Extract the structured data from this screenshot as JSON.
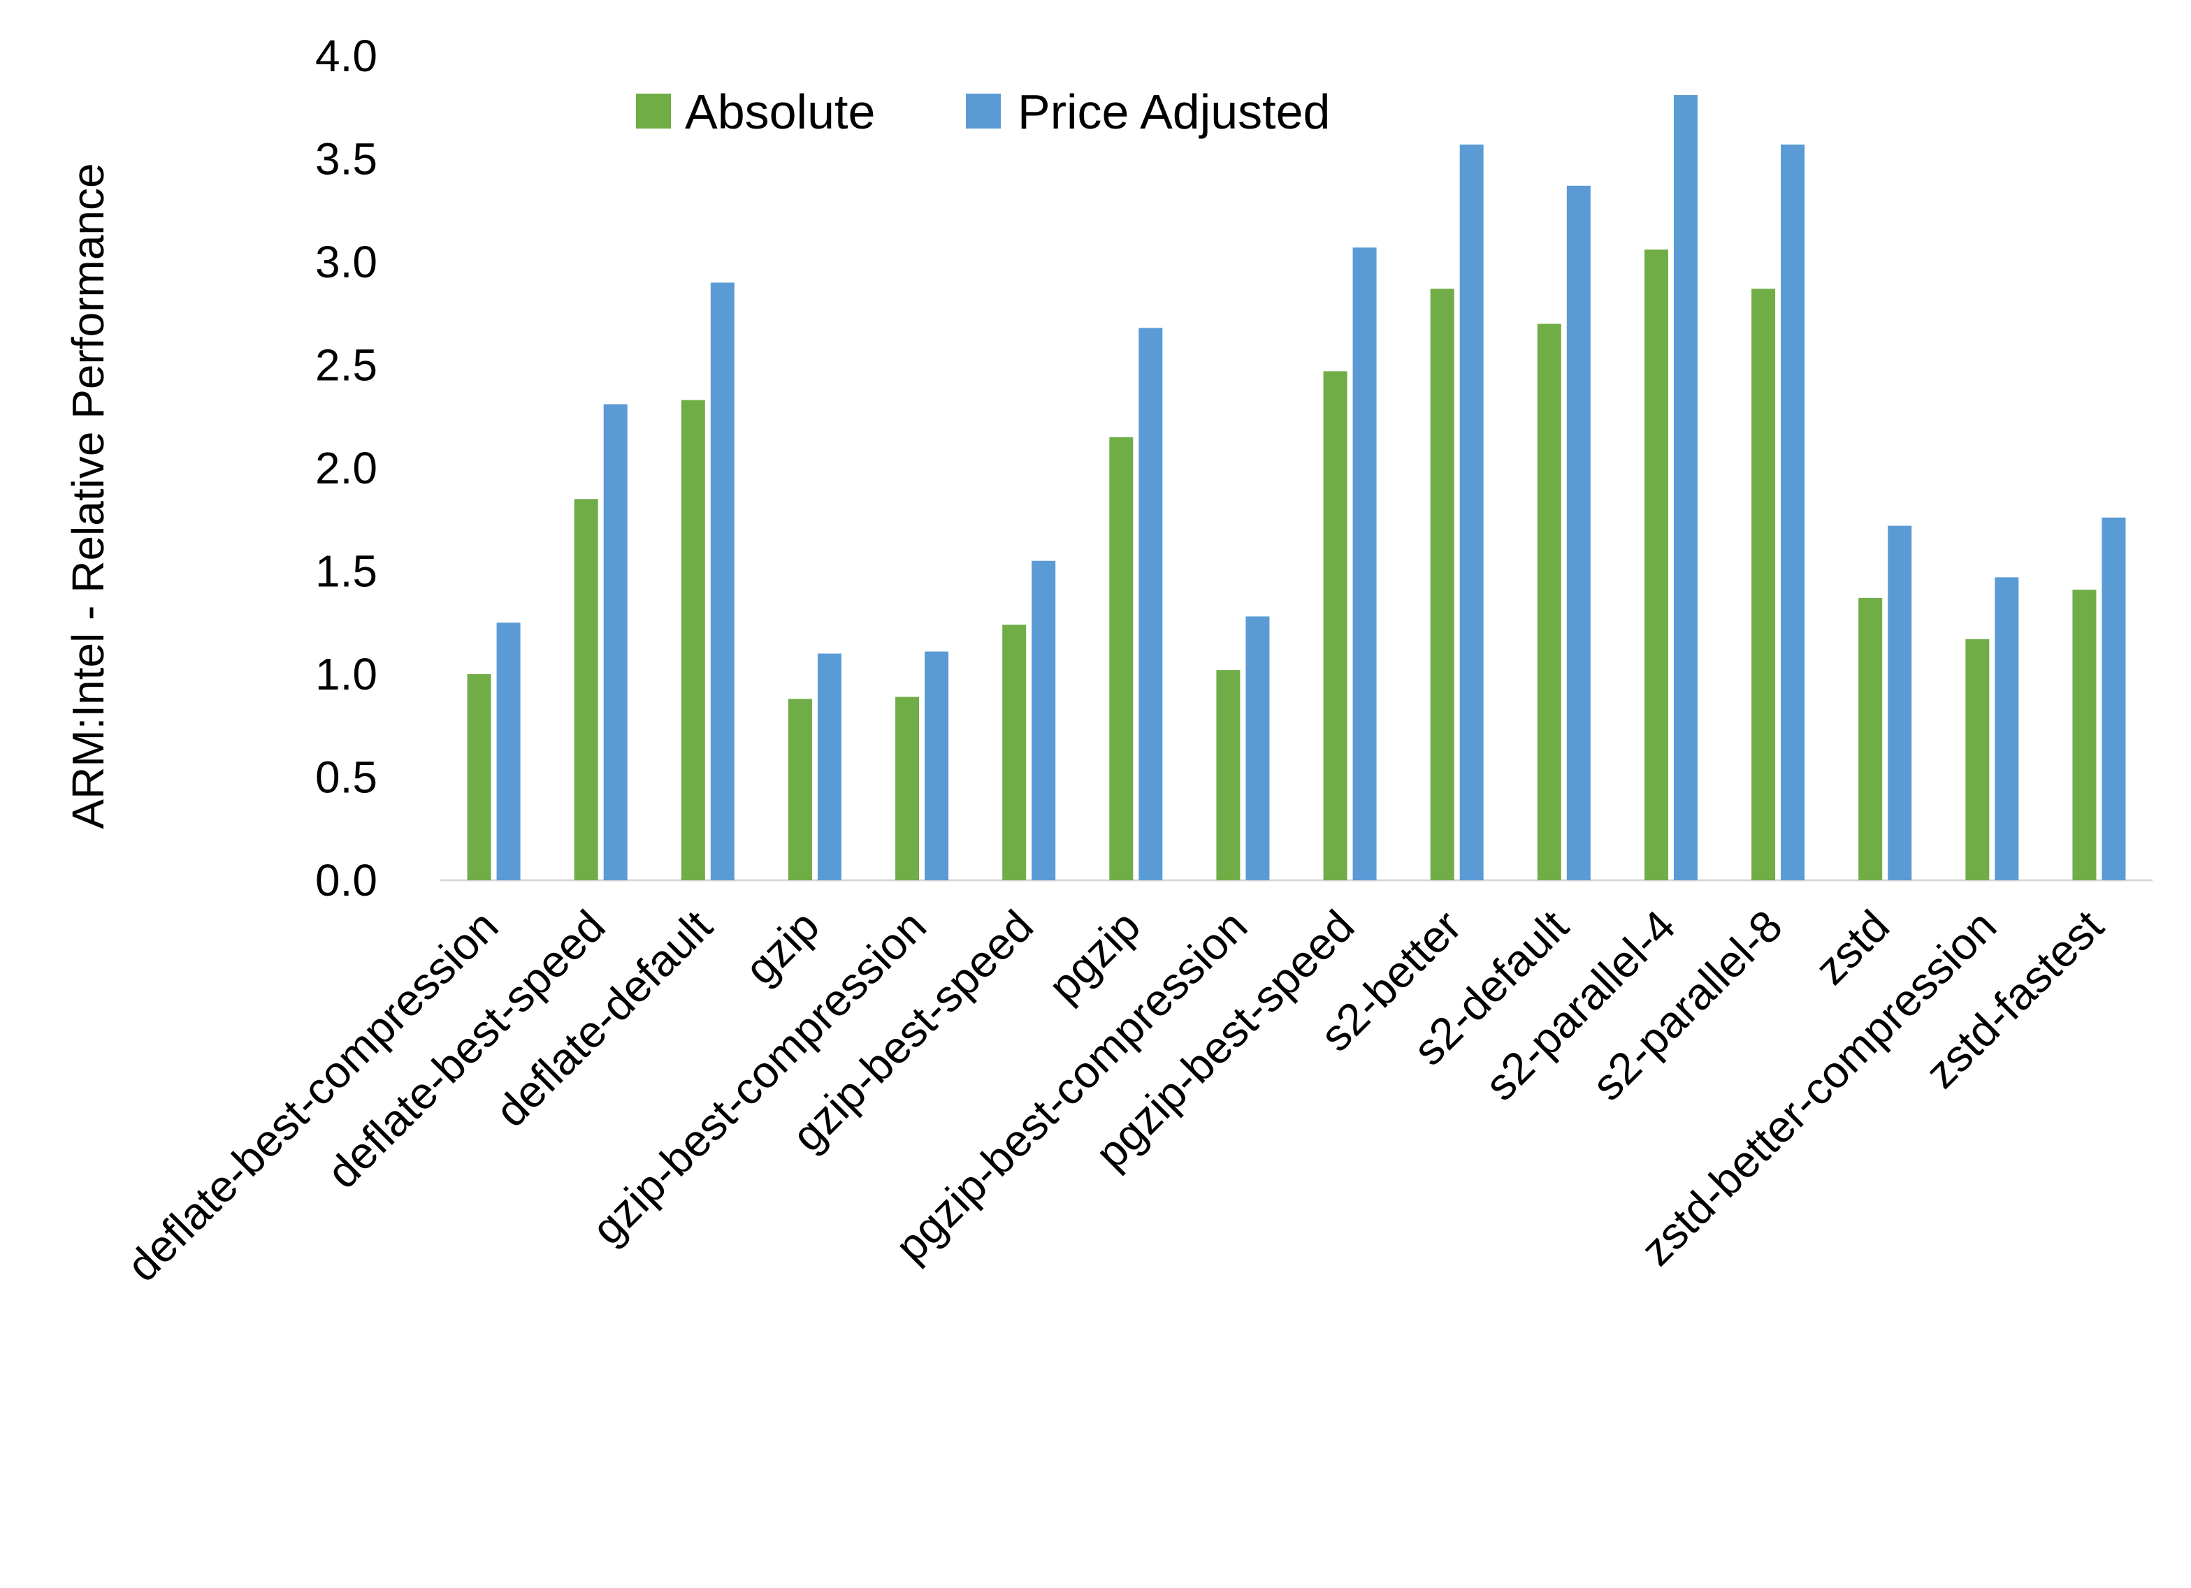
{
  "chart_data": {
    "type": "bar",
    "title": "",
    "xlabel": "",
    "ylabel": "ARM:Intel - Relative Performance",
    "ylim": [
      0,
      4
    ],
    "yticks": [
      "0.0",
      "0.5",
      "1.0",
      "1.5",
      "2.0",
      "2.5",
      "3.0",
      "3.5",
      "4.0"
    ],
    "grid": false,
    "legend_position": "top",
    "categories": [
      "deflate-best-compression",
      "deflate-best-speed",
      "deflate-default",
      "gzip",
      "gzip-best-compression",
      "gzip-best-speed",
      "pgzip",
      "pgzip-best-compression",
      "pgzip-best-speed",
      "s2-better",
      "s2-default",
      "s2-parallel-4",
      "s2-parallel-8",
      "zstd",
      "zstd-better-compression",
      "zstd-fastest"
    ],
    "series": [
      {
        "name": "Absolute",
        "color": "#70AD47",
        "values": [
          1.0,
          1.85,
          2.33,
          0.88,
          0.89,
          1.24,
          2.15,
          1.02,
          2.47,
          2.87,
          2.7,
          3.06,
          2.87,
          1.37,
          1.17,
          1.41
        ]
      },
      {
        "name": "Price Adjusted",
        "color": "#5B9BD5",
        "values": [
          1.25,
          2.31,
          2.9,
          1.1,
          1.11,
          1.55,
          2.68,
          1.28,
          3.07,
          3.57,
          3.37,
          3.81,
          3.57,
          1.72,
          1.47,
          1.76
        ]
      }
    ]
  }
}
